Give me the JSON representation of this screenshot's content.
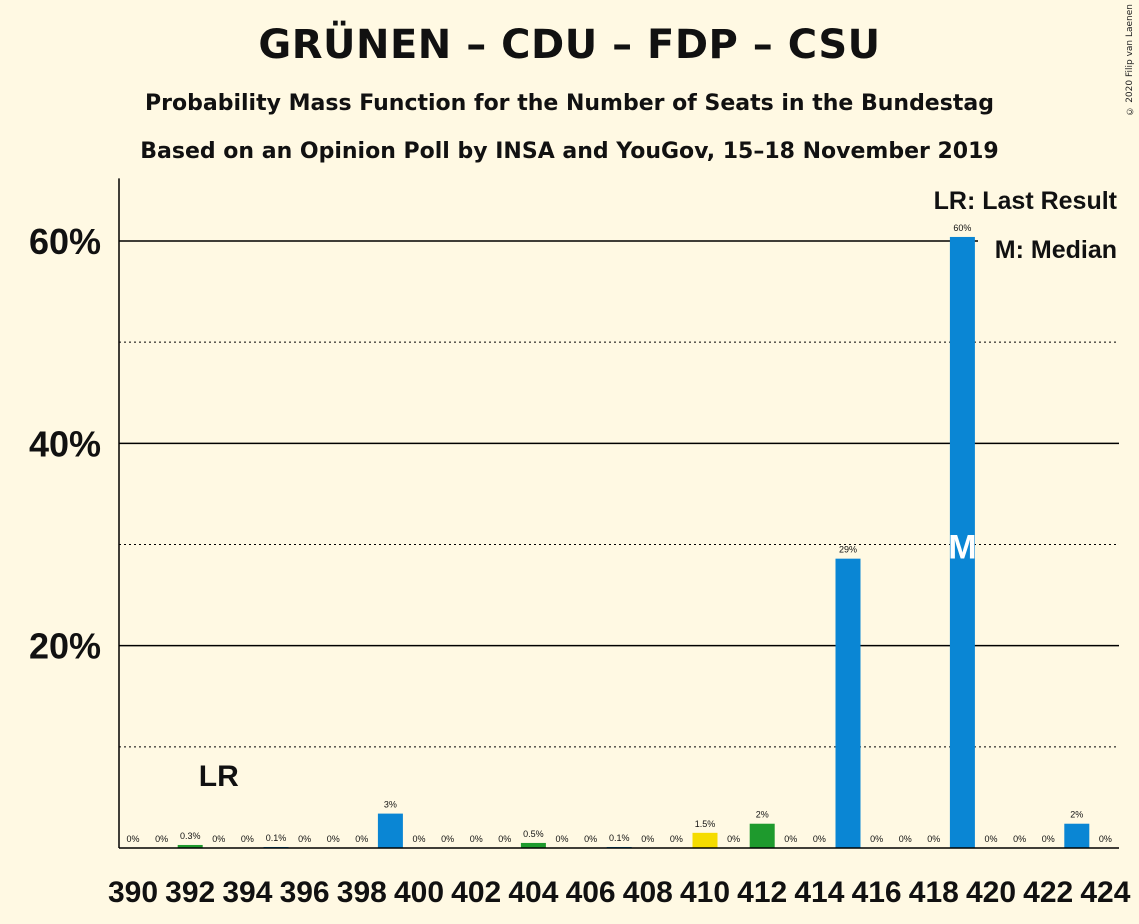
{
  "title": "GRÜNEN – CDU – FDP – CSU",
  "subtitle": "Probability Mass Function for the Number of Seats in the Bundestag",
  "subtitle2": "Based on an Opinion Poll by INSA and YouGov, 15–18 November 2019",
  "copyright": "© 2020 Filip van Laenen",
  "legend": {
    "lr": "LR: Last Result",
    "median": "M: Median"
  },
  "markers": {
    "last_result_label": "LR",
    "last_result_seat": 393,
    "median_label": "M",
    "median_seat": 419
  },
  "colors": {
    "blue": "#0A86D4",
    "green": "#1E9A2D",
    "yellow": "#F5DC00",
    "background": "#FFF9E3"
  },
  "chart_data": {
    "type": "bar",
    "x": [
      390,
      391,
      392,
      393,
      394,
      395,
      396,
      397,
      398,
      399,
      400,
      401,
      402,
      403,
      404,
      405,
      406,
      407,
      408,
      409,
      410,
      411,
      412,
      413,
      414,
      415,
      416,
      417,
      418,
      419,
      420,
      421,
      422,
      423,
      424
    ],
    "values": [
      0,
      0,
      0.3,
      0,
      0,
      0.1,
      0,
      0,
      0,
      3.4,
      0,
      0,
      0,
      0,
      0.5,
      0,
      0,
      0.1,
      0,
      0,
      1.5,
      0,
      2.4,
      0,
      0,
      28.6,
      0,
      0,
      0,
      60.4,
      0,
      0,
      0,
      2.4,
      0
    ],
    "labels": [
      "0%",
      "0%",
      "0.3%",
      "0%",
      "0%",
      "0.1%",
      "0%",
      "0%",
      "0%",
      "3%",
      "0%",
      "0%",
      "0%",
      "0%",
      "0.5%",
      "0%",
      "0%",
      "0.1%",
      "0%",
      "0%",
      "1.5%",
      "0%",
      "2%",
      "0%",
      "0%",
      "29%",
      "0%",
      "0%",
      "0%",
      "60%",
      "0%",
      "0%",
      "0%",
      "2%",
      "0%"
    ],
    "bar_colors": [
      "blue",
      "blue",
      "green",
      "blue",
      "blue",
      "blue",
      "blue",
      "blue",
      "blue",
      "blue",
      "blue",
      "blue",
      "blue",
      "blue",
      "green",
      "blue",
      "blue",
      "blue",
      "blue",
      "blue",
      "yellow",
      "blue",
      "green",
      "blue",
      "blue",
      "blue",
      "blue",
      "blue",
      "blue",
      "blue",
      "blue",
      "blue",
      "blue",
      "blue",
      "blue"
    ],
    "x_ticks": [
      390,
      392,
      394,
      396,
      398,
      400,
      402,
      404,
      406,
      408,
      410,
      412,
      414,
      416,
      418,
      420,
      422,
      424
    ],
    "y_ticks": [
      20,
      40,
      60
    ],
    "y_tick_labels": [
      "20%",
      "40%",
      "60%"
    ],
    "ylim": [
      0,
      65.7
    ],
    "grid_solid": [
      20,
      40,
      60
    ],
    "grid_dotted": [
      10,
      30,
      50
    ]
  }
}
